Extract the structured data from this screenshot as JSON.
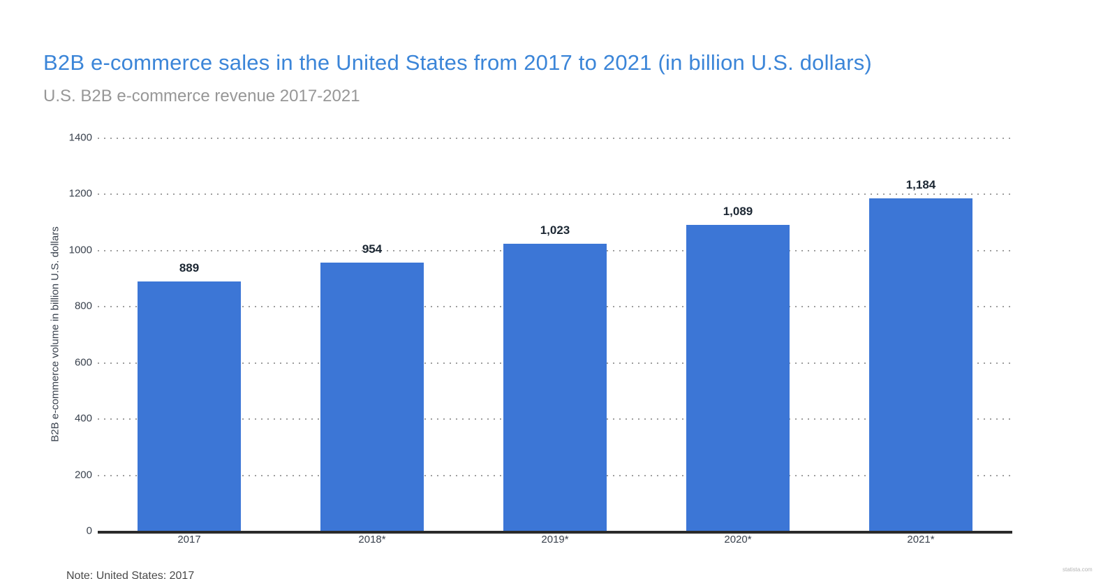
{
  "page": {
    "title": "B2B e-commerce sales in the United States from 2017 to 2021 (in billion U.S. dollars)",
    "subtitle": "U.S. B2B e-commerce revenue 2017-2021",
    "footer_note": "Note: United States; 2017",
    "watermark": "statista.com"
  },
  "colors": {
    "bar": "#3C76D6",
    "title": "#3B85D8",
    "subtitle": "#979797",
    "axis_text": "#39414D",
    "value_label": "#1C2733",
    "gridline": "#9E9E9E",
    "baseline": "#2B2B2B"
  },
  "chart_data": {
    "type": "bar",
    "title": "B2B e-commerce sales in the United States from 2017 to 2021 (in billion U.S. dollars)",
    "subtitle": "U.S. B2B e-commerce revenue 2017-2021",
    "categories": [
      "2017",
      "2018*",
      "2019*",
      "2020*",
      "2021*"
    ],
    "values": [
      889,
      954,
      1023,
      1089,
      1184
    ],
    "value_labels": [
      "889",
      "954",
      "1,023",
      "1,089",
      "1,184"
    ],
    "xlabel": "",
    "ylabel": "B2B e-commerce volume in billion U.S. dollars",
    "ylim": [
      0,
      1400
    ],
    "yticks": [
      0,
      200,
      400,
      600,
      800,
      1000,
      1200,
      1400
    ],
    "grid": "horizontal-dotted",
    "legend": "none",
    "bar_color": "#3C76D6"
  }
}
